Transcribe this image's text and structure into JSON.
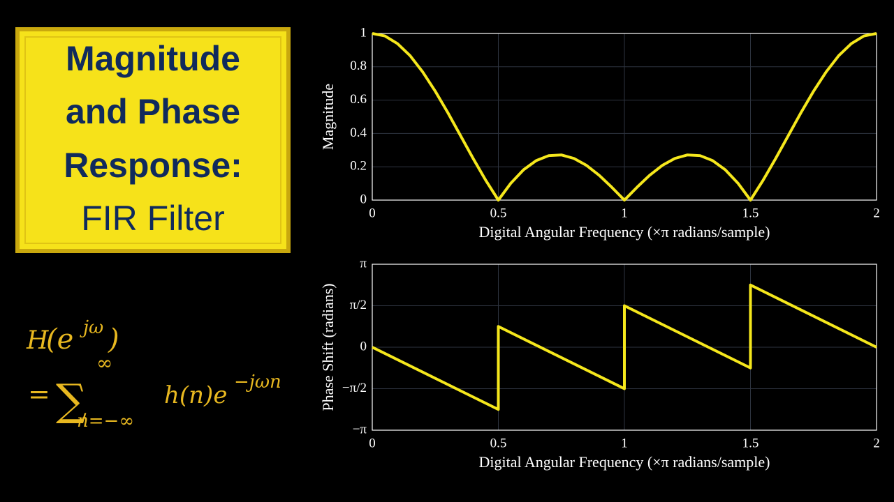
{
  "title_box": {
    "lines": [
      "Magnitude",
      "and Phase",
      "Response:",
      "FIR Filter"
    ]
  },
  "formula": {
    "lhs": "H",
    "lhs_open": "(e",
    "lhs_sup": "jω",
    "lhs_close": ")",
    "equals": "=",
    "sum": "∑",
    "sum_upper": "∞",
    "sum_lower": "n=−∞",
    "term": "h(n)e",
    "term_sup": "−jωn"
  },
  "chart_data": [
    {
      "type": "line",
      "xlabel": "Digital Angular Frequency (×π radians/sample)",
      "ylabel": "Magnitude",
      "x": [
        0,
        0.05,
        0.1,
        0.15,
        0.2,
        0.25,
        0.3,
        0.35,
        0.4,
        0.45,
        0.5,
        0.55,
        0.6,
        0.65,
        0.7,
        0.75,
        0.8,
        0.85,
        0.9,
        0.95,
        1,
        1.05,
        1.1,
        1.15,
        1.2,
        1.25,
        1.3,
        1.35,
        1.4,
        1.45,
        1.5,
        1.55,
        1.6,
        1.65,
        1.7,
        1.75,
        1.8,
        1.85,
        1.9,
        1.95,
        2
      ],
      "series": [
        {
          "color": "#f5e71c",
          "values": [
            1,
            0.985,
            0.939,
            0.867,
            0.769,
            0.653,
            0.524,
            0.387,
            0.25,
            0.119,
            0,
            0.102,
            0.182,
            0.237,
            0.267,
            0.271,
            0.25,
            0.208,
            0.149,
            0.077,
            0,
            0.077,
            0.149,
            0.208,
            0.25,
            0.271,
            0.267,
            0.237,
            0.182,
            0.102,
            0,
            0.119,
            0.25,
            0.387,
            0.524,
            0.653,
            0.769,
            0.867,
            0.939,
            0.985,
            1
          ]
        }
      ],
      "xlim": [
        0,
        2
      ],
      "ylim": [
        0,
        1
      ],
      "xticks": [
        0,
        0.5,
        1,
        1.5,
        2
      ],
      "yticks": [
        0,
        0.2,
        0.4,
        0.6,
        0.8,
        1
      ],
      "grid": true
    },
    {
      "type": "line",
      "xlabel": "Digital Angular Frequency (×π radians/sample)",
      "ylabel": "Phase Shift (radians)",
      "x": [
        0,
        0.5,
        0.5,
        1,
        1,
        1.5,
        1.5,
        2
      ],
      "series": [
        {
          "color": "#f5e71c",
          "values": [
            0,
            -2.356,
            0.785,
            -1.571,
            1.571,
            -0.785,
            2.356,
            0
          ]
        }
      ],
      "xlim": [
        0,
        2
      ],
      "ylim": [
        -3.1416,
        3.1416
      ],
      "xticks": [
        0,
        0.5,
        1,
        1.5,
        2
      ],
      "yticks": [
        {
          "value": -3.1416,
          "label": "−π"
        },
        {
          "value": -1.5708,
          "label": "−π/2"
        },
        0,
        {
          "value": 1.5708,
          "label": "π/2"
        },
        {
          "value": 3.1416,
          "label": "π"
        }
      ],
      "grid": true
    }
  ]
}
